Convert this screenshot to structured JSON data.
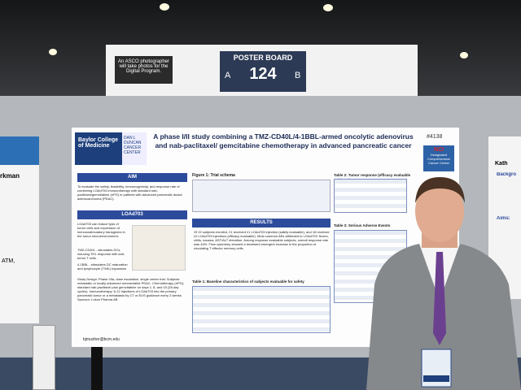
{
  "sign": {
    "photo_notice": "An ASCO photographer will take photos for the Digital Program.",
    "label": "POSTER BOARD",
    "left": "A",
    "number": "124",
    "right": "B"
  },
  "left_poster": {
    "fragment": "rkman",
    "list": "ATM,"
  },
  "right_poster": {
    "name": "Kath",
    "heading1": "Backgro",
    "heading2": "Aims:"
  },
  "poster": {
    "title": "A phase I/II study combining a TMZ-CD40L/4-1BBL-armed oncolytic adenovirus and nab-paclitaxel/ gemcitabine chemotherapy in advanced pancreatic cancer",
    "id": "#4138",
    "logo1": "Baylor College of Medicine",
    "logo2": "DAN L DUNCAN CANCER CENTER",
    "nci": "NCI",
    "nci_text": "Designated Comprehensive Cancer Center",
    "aim_header": "AIM",
    "aim_text": "To evaluate the safety, feasibility, immunogenicity, and response rate of combining LOAd703 immunotherapy with standard nab-paclitaxel/gemcitabine (nPG) in patients with advanced pancreatic ductal adenocarcinoma (PDAC).",
    "load_header": "LOAd703",
    "load_text": "LOAd703 can induce lysis of tumor cells and expression of immunostimulatory transgenes in the tumor microenvironment:",
    "bullet1": "TMZ-CD40L - stimulates DCs, inducing TH1 response with anti-tumor T cells.",
    "bullet2": "4-1BBL - stimulates DC maturation and lymphocyte (T/NK) expansion",
    "study_design": "Study Design: Phase I/IIa, dose escalation, single center trial. Subjects: metastatic or locally advanced unresectable PDAC. Chemotherapy (nPG): standard nab-paclitaxel plus gemcitabine on days 1, 8, and 15 (28-day cycles). Immunotherapy: 6-12 injections of LOAd703 into the primary pancreatic tumor or a metastasis by CT or EUS guidance every 2 weeks. Sponsor: Lokon Pharma AB",
    "email": "bjmusher@bcm.edu",
    "figure1": "Figure 1: Trial schema",
    "results_header": "RESULTS",
    "results_text": "Of 22 subjects enrolled, 21 received ≥1 LOAd703 injection (safety evaluable), and 18 received ≥2 LOAd703 injections (efficacy evaluable). Most common AEs attributed to LOAd703: fevers, chills, nausea, AST/ALT elevation. Among response evaluable subjects, overall response rate was 44%. Flow cytometry showed a treatment emergent increase in the proportion of circulating T effector memory cells.",
    "table1": "Table 1: Baseline characteristics of subjects evaluable for safety",
    "table2": "Table 2: Tumor response (efficacy evaluable subjects)",
    "table3": "Table 3: Serious Adverse Events"
  }
}
